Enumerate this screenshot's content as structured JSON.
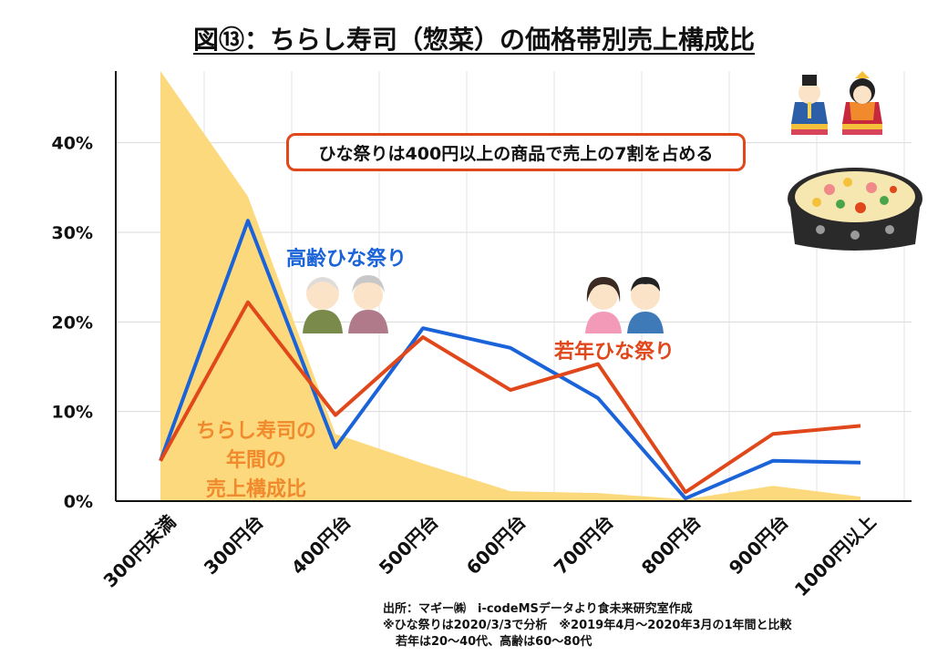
{
  "title": "図⑬：ちらし寿司（惣菜）の価格帯別売上構成比",
  "callout": "ひな祭りは400円以上の商品で売上の7割を占める",
  "labels": {
    "elderly": "高齢ひな祭り",
    "young": "若年ひな祭り",
    "annual_line1": "ちらし寿司の",
    "annual_line2": "年間の",
    "annual_line3": "売上構成比"
  },
  "source": {
    "line1": "出所：マギー㈱　i-codeMSデータより食未来研究室作成",
    "line2": "※ひな祭りは2020/3/3で分析　※2019年4月～2020年3月の1年間と比較",
    "line3": "若年は20～40代、高齢は60～80代"
  },
  "colors": {
    "elderly": "#1a63d8",
    "young": "#e0471a",
    "annual": "#fcd97c",
    "annual_text": "#f08a2c"
  },
  "illustrations": [
    "hina-dolls-icon",
    "chirashi-sushi-bowl-icon",
    "elderly-couple-icon",
    "young-couple-icon"
  ],
  "chart_data": {
    "type": "line",
    "title": "図⑬：ちらし寿司（惣菜）の価格帯別売上構成比",
    "categories": [
      "300円未満",
      "300円台",
      "400円台",
      "500円台",
      "600円台",
      "700円台",
      "800円台",
      "900円台",
      "1000円以上"
    ],
    "ylim": [
      0,
      48
    ],
    "yticks": [
      0,
      10,
      20,
      30,
      40
    ],
    "ytick_labels": [
      "0%",
      "10%",
      "20%",
      "30%",
      "40%"
    ],
    "grid": true,
    "series": [
      {
        "name": "ちらし寿司の年間の売上構成比",
        "kind": "area",
        "values": [
          48,
          34,
          7.5,
          4.2,
          1.1,
          0.9,
          0.2,
          1.7,
          0.5
        ]
      },
      {
        "name": "高齢ひな祭り",
        "kind": "line",
        "values": [
          4.5,
          31.3,
          6.0,
          19.3,
          17.1,
          11.5,
          0.3,
          4.5,
          4.3
        ]
      },
      {
        "name": "若年ひな祭り",
        "kind": "line",
        "values": [
          4.5,
          22.2,
          9.6,
          18.3,
          12.4,
          15.3,
          1.0,
          7.5,
          8.4
        ]
      }
    ]
  }
}
